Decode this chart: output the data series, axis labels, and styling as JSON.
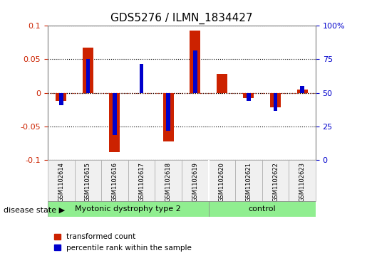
{
  "title": "GDS5276 / ILMN_1834427",
  "samples": [
    "GSM1102614",
    "GSM1102615",
    "GSM1102616",
    "GSM1102617",
    "GSM1102618",
    "GSM1102619",
    "GSM1102620",
    "GSM1102621",
    "GSM1102622",
    "GSM1102623"
  ],
  "red_values": [
    -0.012,
    0.068,
    -0.088,
    0.0,
    -0.072,
    0.093,
    0.028,
    -0.008,
    -0.022,
    0.005
  ],
  "blue_values": [
    -0.018,
    0.051,
    -0.063,
    0.043,
    -0.057,
    0.063,
    0.0,
    -0.012,
    -0.027,
    0.01
  ],
  "disease_groups": [
    {
      "label": "Myotonic dystrophy type 2",
      "start": 0,
      "end": 6,
      "color": "#90ee90"
    },
    {
      "label": "control",
      "start": 6,
      "end": 10,
      "color": "#90ee90"
    }
  ],
  "ylim": [
    -0.1,
    0.1
  ],
  "y2lim": [
    0,
    100
  ],
  "y_ticks": [
    -0.1,
    -0.05,
    0,
    0.05,
    0.1
  ],
  "y2_ticks": [
    0,
    25,
    50,
    75,
    100
  ],
  "y_tick_labels": [
    "-0.1",
    "-0.05",
    "0",
    "0.05",
    "0.1"
  ],
  "y2_tick_labels": [
    "0",
    "25",
    "50",
    "75",
    "100%"
  ],
  "red_color": "#cc2200",
  "blue_color": "#0000cc",
  "bar_width": 0.4,
  "blue_bar_width": 0.15,
  "legend_labels": [
    "transformed count",
    "percentile rank within the sample"
  ],
  "disease_state_label": "disease state",
  "grid_color": "#000000",
  "zero_line_color": "#cc2200",
  "bg_color": "#f0f0f0",
  "plot_bg_color": "#ffffff"
}
